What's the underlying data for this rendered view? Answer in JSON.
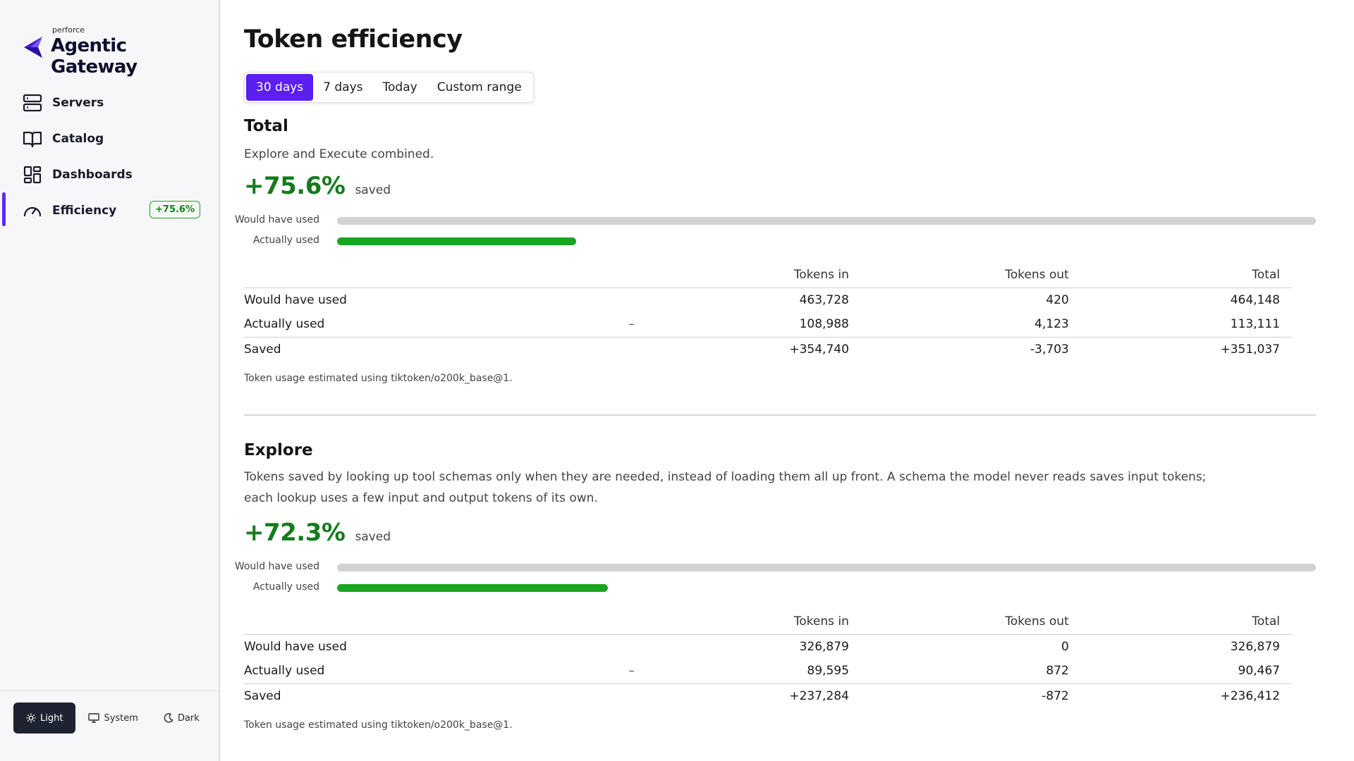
{
  "app": {
    "brand_small": "perforce",
    "brand_name": "Agentic Gateway"
  },
  "sidebar": {
    "items": [
      {
        "label": "Servers",
        "icon": "server-icon"
      },
      {
        "label": "Catalog",
        "icon": "book-icon"
      },
      {
        "label": "Dashboards",
        "icon": "dashboard-icon"
      },
      {
        "label": "Efficiency",
        "icon": "gauge-icon",
        "badge": "+75.6%",
        "active": true
      }
    ]
  },
  "theme": {
    "options": [
      "Light",
      "System",
      "Dark"
    ],
    "selected": "Light"
  },
  "page": {
    "title": "Token efficiency",
    "ranges": [
      "30 days",
      "7 days",
      "Today",
      "Custom range"
    ],
    "selected_range": "30 days"
  },
  "total": {
    "title": "Total",
    "description": "Explore and Execute combined.",
    "percent": "+75.6%",
    "percent_label": "saved",
    "bar_would_label": "Would have used",
    "bar_actual_label": "Actually used",
    "actual_fraction": 0.244,
    "columns": [
      "Tokens in",
      "Tokens out",
      "Total"
    ],
    "rows": [
      {
        "label": "Would have used",
        "marker": "",
        "in": "463,728",
        "out": "420",
        "total": "464,148"
      },
      {
        "label": "Actually used",
        "marker": "–",
        "in": "108,988",
        "out": "4,123",
        "total": "113,111"
      },
      {
        "label": "Saved",
        "marker": "",
        "in": "+354,740",
        "out": "-3,703",
        "total": "+351,037"
      }
    ],
    "footnote": "Token usage estimated using tiktoken/o200k_base@1."
  },
  "explore": {
    "title": "Explore",
    "description": "Tokens saved by looking up tool schemas only when they are needed, instead of loading them all up front. A schema the model never reads saves input tokens; each lookup uses a few input and output tokens of its own.",
    "percent": "+72.3%",
    "percent_label": "saved",
    "bar_would_label": "Would have used",
    "bar_actual_label": "Actually used",
    "actual_fraction": 0.277,
    "columns": [
      "Tokens in",
      "Tokens out",
      "Total"
    ],
    "rows": [
      {
        "label": "Would have used",
        "marker": "",
        "in": "326,879",
        "out": "0",
        "total": "326,879"
      },
      {
        "label": "Actually used",
        "marker": "–",
        "in": "89,595",
        "out": "872",
        "total": "90,467"
      },
      {
        "label": "Saved",
        "marker": "",
        "in": "+237,284",
        "out": "-872",
        "total": "+236,412"
      }
    ],
    "footnote": "Token usage estimated using tiktoken/o200k_base@1."
  },
  "colors": {
    "accent": "#5b1ff0",
    "positive": "#137f1c",
    "negative": "#c0121b",
    "bar_fill": "#1aa51f",
    "bar_track": "#d2d2d2"
  }
}
